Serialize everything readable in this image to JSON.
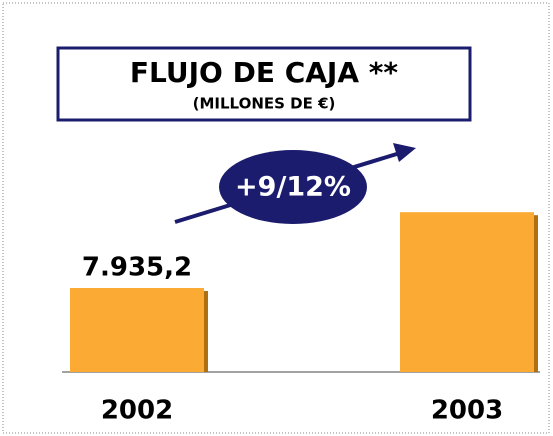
{
  "chart_data": {
    "type": "bar",
    "title": "FLUJO DE CAJA **",
    "subtitle": "(MILLONES DE €)",
    "annotation": "+9/12%",
    "categories": [
      "2002",
      "2003"
    ],
    "values": [
      7935.2,
      15100
    ],
    "value_labels": [
      "7.935,2",
      null
    ],
    "color": "#fbaa33",
    "ylim": [
      0,
      18000
    ]
  }
}
